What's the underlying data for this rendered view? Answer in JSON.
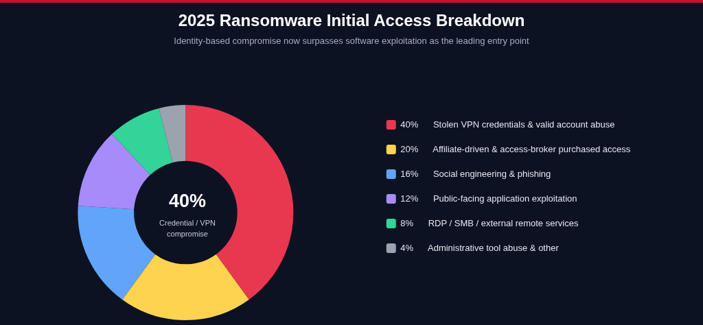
{
  "chart_data": {
    "type": "donut",
    "title": "2025 Ransomware Initial Access Breakdown",
    "subtitle": "Identity-based compromise now surpasses software exploitation as the leading entry point",
    "categories": [
      "Stolen VPN credentials & valid account abuse",
      "Affiliate-driven & access-broker purchased access",
      "Social engineering & phishing",
      "Public-facing application exploitation",
      "RDP / SMB / external remote services",
      "Administrative tool abuse & other"
    ],
    "values": [
      40,
      20,
      16,
      12,
      8,
      4
    ],
    "colors": [
      "#e8384f",
      "#fdd34f",
      "#60a5fa",
      "#a78bfa",
      "#34d399",
      "#9ca3af"
    ],
    "annotations": [
      "40%",
      "Credential / VPN compromise"
    ],
    "value_labels": [
      "40%",
      "20%",
      "16%",
      "12%",
      "8%",
      "4%"
    ],
    "legend": "right"
  }
}
